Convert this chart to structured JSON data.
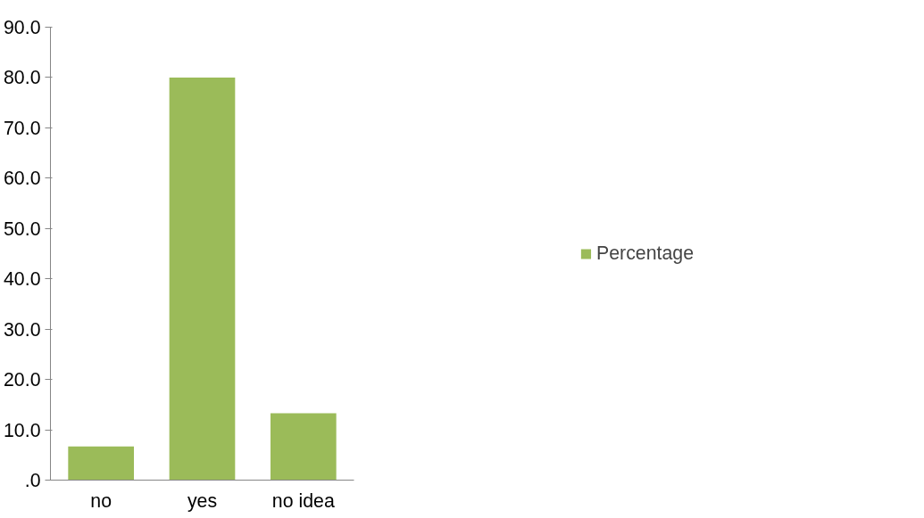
{
  "chart_data": {
    "type": "bar",
    "categories": [
      "no",
      "yes",
      "no idea"
    ],
    "series": [
      {
        "name": "Percentage",
        "color": "#9bbb59",
        "values": [
          6.7,
          80.0,
          13.3
        ]
      }
    ],
    "ylim": [
      0,
      90
    ],
    "yticks": [
      {
        "value": 0,
        "label": ".0"
      },
      {
        "value": 10,
        "label": "10.0"
      },
      {
        "value": 20,
        "label": "20.0"
      },
      {
        "value": 30,
        "label": "30.0"
      },
      {
        "value": 40,
        "label": "40.0"
      },
      {
        "value": 50,
        "label": "50.0"
      },
      {
        "value": 60,
        "label": "60.0"
      },
      {
        "value": 70,
        "label": "70.0"
      },
      {
        "value": 80,
        "label": "80.0"
      },
      {
        "value": 90,
        "label": "90.0"
      }
    ],
    "grid": false,
    "legend": "right"
  }
}
